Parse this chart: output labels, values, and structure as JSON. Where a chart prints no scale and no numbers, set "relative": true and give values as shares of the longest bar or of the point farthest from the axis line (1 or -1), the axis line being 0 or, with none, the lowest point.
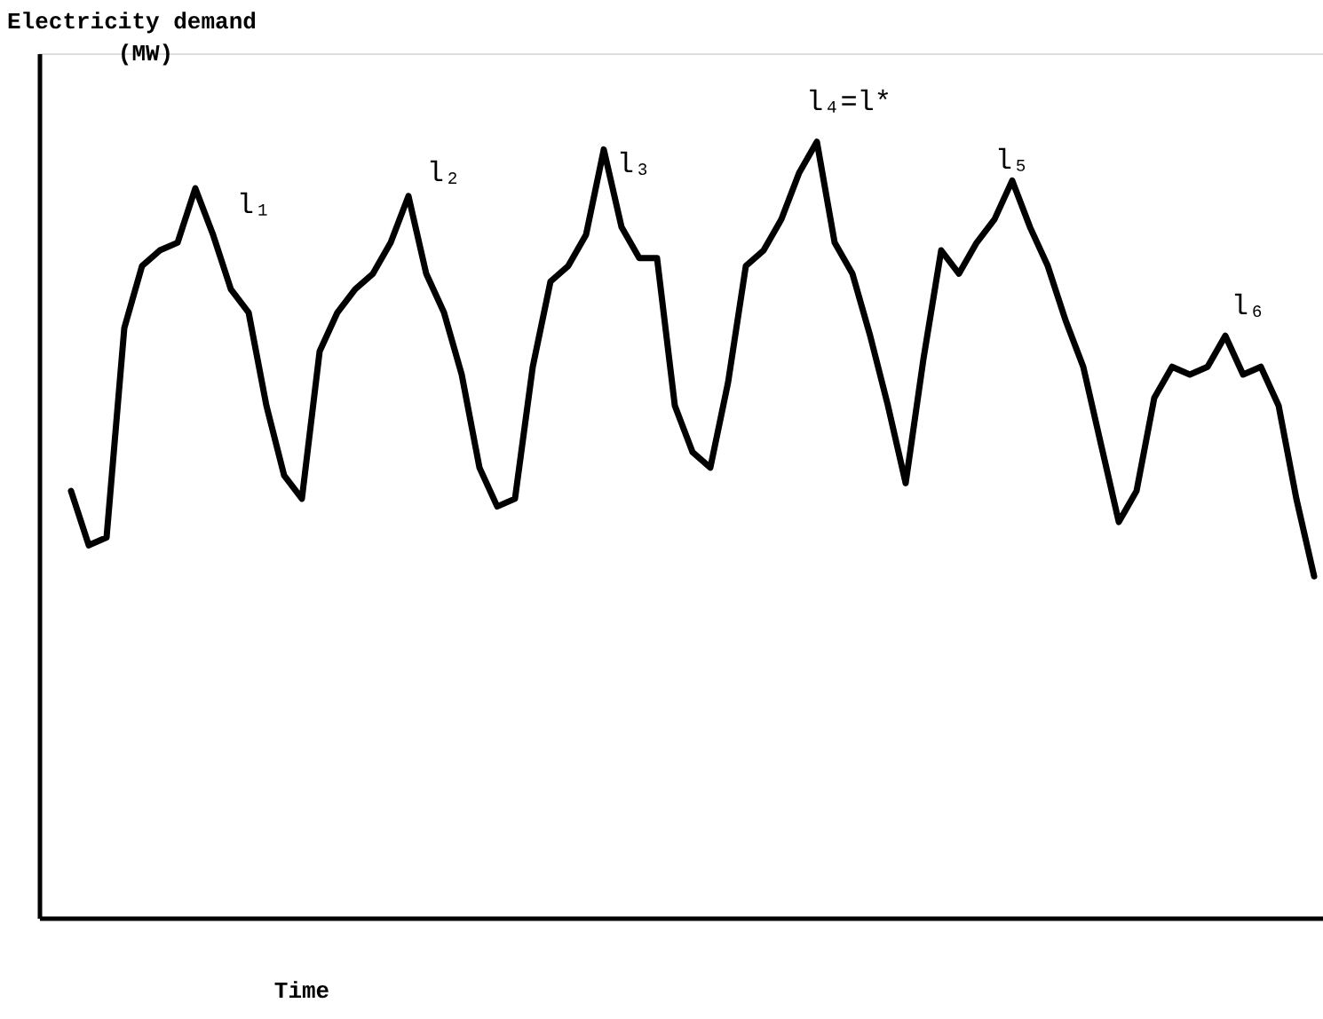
{
  "chart_data": {
    "type": "line",
    "relative": true,
    "xlabel": "Time",
    "ylabel": "Electricity demand (MW)",
    "categories": [
      null,
      null,
      null,
      null,
      null,
      null,
      null,
      null,
      null,
      null,
      null,
      null,
      null,
      null,
      null,
      null,
      null,
      null,
      null,
      null,
      null,
      null,
      null,
      null,
      null,
      null,
      null,
      null,
      null,
      null,
      null,
      null,
      null,
      null,
      null,
      null,
      null,
      null,
      null,
      null,
      null,
      null,
      null,
      null,
      null,
      null,
      null,
      null,
      null,
      null,
      null,
      null,
      null,
      null,
      null,
      null,
      null,
      null,
      null,
      null,
      null,
      null,
      null,
      null,
      null,
      null,
      null,
      null,
      null,
      null,
      null
    ],
    "series": [
      {
        "color": "#000000",
        "values": [
          0.55,
          0.48,
          0.49,
          0.76,
          0.84,
          0.86,
          0.87,
          0.94,
          0.88,
          0.81,
          0.78,
          0.66,
          0.57,
          0.54,
          0.73,
          0.78,
          0.81,
          0.83,
          0.87,
          0.93,
          0.83,
          0.78,
          0.7,
          0.58,
          0.53,
          0.54,
          0.71,
          0.82,
          0.84,
          0.88,
          0.99,
          0.89,
          0.85,
          0.85,
          0.66,
          0.6,
          0.58,
          0.69,
          0.84,
          0.86,
          0.9,
          0.96,
          1.0,
          0.87,
          0.83,
          0.75,
          0.66,
          0.56,
          0.72,
          0.86,
          0.83,
          0.87,
          0.9,
          0.95,
          0.89,
          0.84,
          0.77,
          0.71,
          0.61,
          0.51,
          0.55,
          0.67,
          0.71,
          0.7,
          0.71,
          0.75,
          0.7,
          0.71,
          0.66,
          0.54,
          0.44
        ]
      }
    ],
    "annotations": [
      "l₁",
      "l₂",
      "l₃",
      "l₄=l*",
      "l₅",
      "l₆"
    ]
  }
}
